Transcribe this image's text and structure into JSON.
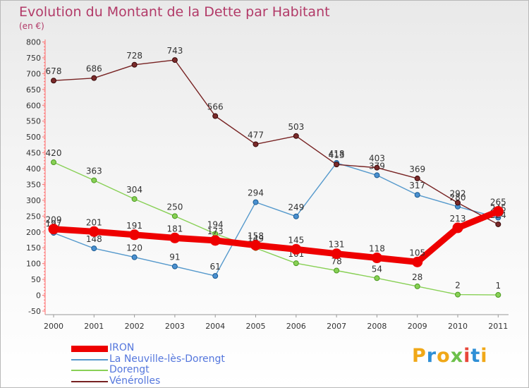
{
  "title": "Evolution du Montant de la Dette par Habitant",
  "subtitle": "(en €)",
  "brand": "Proxiti",
  "chart_data": {
    "type": "line",
    "title": "Evolution du Montant de la Dette par Habitant",
    "subtitle": "(en €)",
    "xlabel": "",
    "ylabel": "",
    "x": [
      "2000",
      "2001",
      "2002",
      "2003",
      "2004",
      "2005",
      "2006",
      "2007",
      "2008",
      "2009",
      "2010",
      "2011"
    ],
    "yticks": [
      "-50",
      "0",
      "50",
      "100",
      "150",
      "200",
      "250",
      "300",
      "350",
      "400",
      "450",
      "500",
      "550",
      "600",
      "650",
      "700",
      "750",
      "800"
    ],
    "ylim": [
      -50,
      800
    ],
    "grid": false,
    "legend_position": "bottom-left",
    "series": [
      {
        "name": "IRON",
        "color": "#ee0000",
        "values": [
          209,
          201,
          191,
          181,
          173,
          158,
          145,
          131,
          118,
          105,
          213,
          265
        ],
        "labels": [
          "209",
          "201",
          "191",
          "181",
          "173",
          "158",
          "145",
          "131",
          "118",
          "105",
          "213",
          "265"
        ]
      },
      {
        "name": "La Neuville-lès-Dorengt",
        "color": "#5599cc",
        "values": [
          197,
          148,
          120,
          91,
          61,
          294,
          249,
          418,
          379,
          317,
          280,
          245
        ],
        "labels": [
          "197",
          "148",
          "120",
          "91",
          "61",
          "294",
          "249",
          "418",
          "379",
          "317",
          "280",
          "245"
        ]
      },
      {
        "name": "Dorengt",
        "color": "#88d055",
        "values": [
          420,
          363,
          304,
          250,
          194,
          149,
          101,
          78,
          54,
          28,
          2,
          1
        ],
        "labels": [
          "420",
          "363",
          "304",
          "250",
          "194",
          "149",
          "101",
          "78",
          "54",
          "28",
          "2",
          "1"
        ]
      },
      {
        "name": "Vénérolles",
        "color": "#772222",
        "values": [
          678,
          686,
          728,
          743,
          566,
          477,
          503,
          413,
          403,
          369,
          292,
          224
        ],
        "labels": [
          "678",
          "686",
          "728",
          "743",
          "566",
          "477",
          "503",
          "413",
          "403",
          "369",
          "292",
          "224"
        ]
      }
    ]
  }
}
